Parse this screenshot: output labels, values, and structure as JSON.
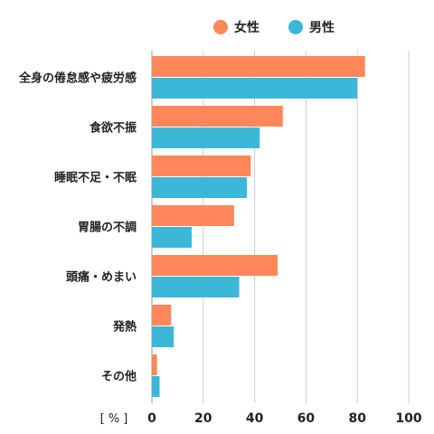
{
  "chart_data": {
    "type": "bar",
    "orientation": "horizontal",
    "categories": [
      "全身の倦怠感や疲労感",
      "食欲不振",
      "睡眠不足・不眠",
      "胃腸の不調",
      "頭痛・めまい",
      "発熱",
      "その他"
    ],
    "series": [
      {
        "name": "女性",
        "color": "#FF875A",
        "values": [
          83,
          51,
          38.5,
          32,
          49,
          7.5,
          2
        ]
      },
      {
        "name": "男性",
        "color": "#3BB8D8",
        "values": [
          80,
          42,
          37,
          15.5,
          34,
          8.5,
          3
        ]
      }
    ],
    "xlim": [
      0,
      100
    ],
    "xticks": [
      0,
      20,
      40,
      60,
      80,
      100
    ],
    "xunit": "[ % ]",
    "grid": true,
    "legend_position": "top-right"
  }
}
